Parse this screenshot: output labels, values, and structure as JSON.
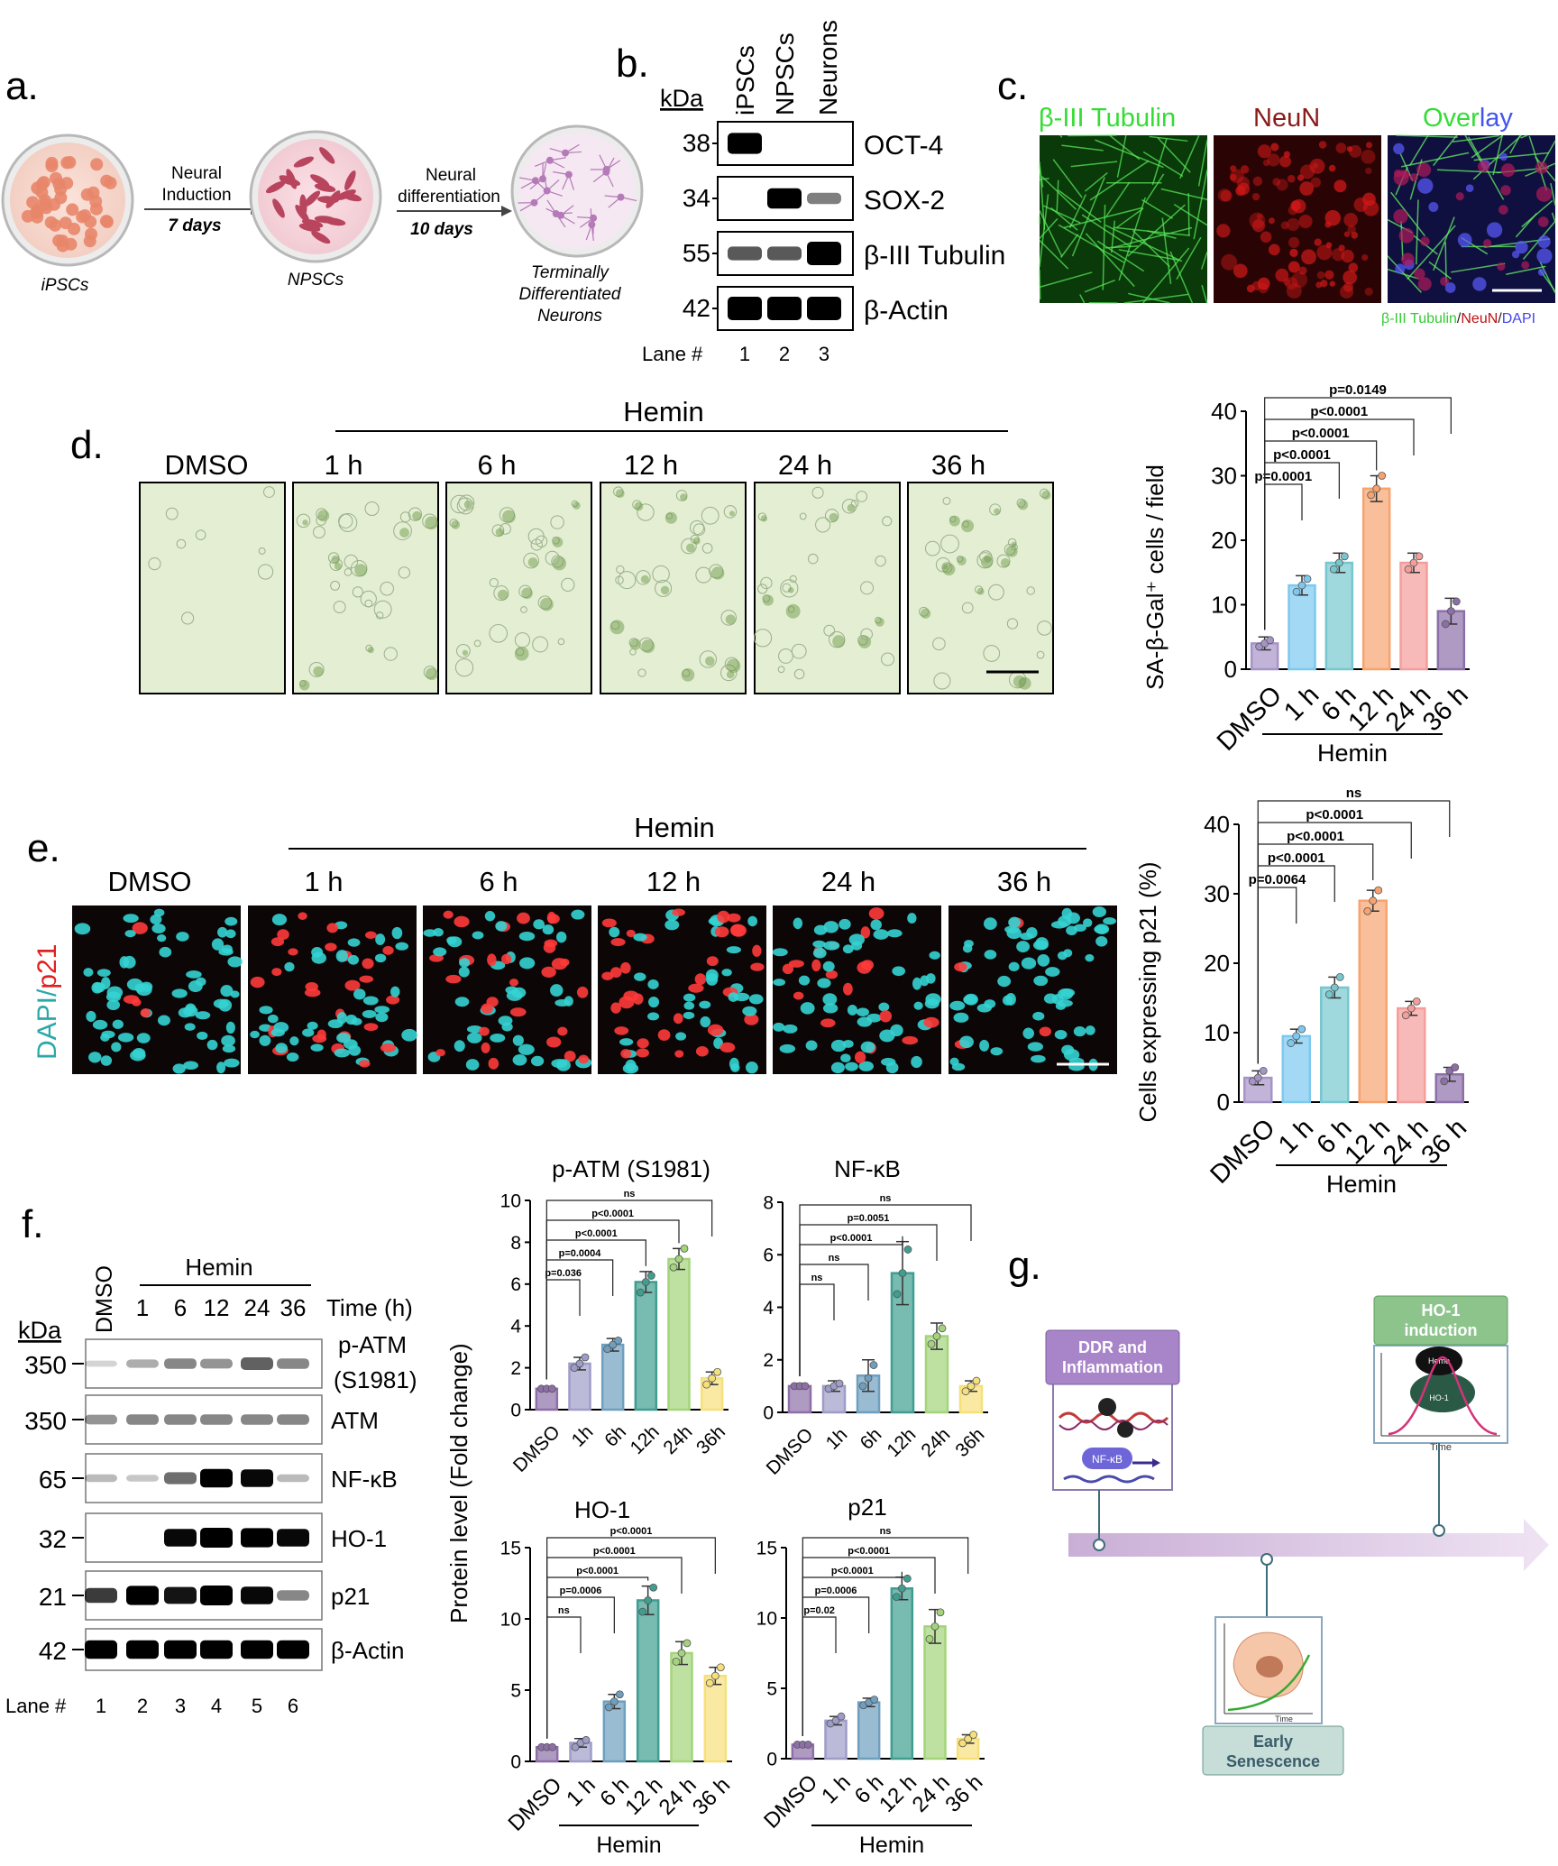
{
  "panel_letters": {
    "a": "a.",
    "b": "b.",
    "c": "c.",
    "d": "d.",
    "e": "e.",
    "f": "f.",
    "g": "g."
  },
  "panel_a": {
    "stages": [
      "iPSCs",
      "NPSCs",
      "Terminally",
      "Differentiated",
      "Neurons"
    ],
    "step1": {
      "line1": "Neural",
      "line2": "Induction",
      "days": "7 days"
    },
    "step2": {
      "line1": "Neural",
      "line2": "differentiation",
      "days": "10 days"
    },
    "colors": {
      "ipsc": "#e8866a",
      "npsc": "#b8445e",
      "neuron": "#b57ab8"
    }
  },
  "panel_b": {
    "kda_label": "kDa",
    "lane_headers": [
      "iPSCs",
      "NPSCs",
      "Neurons"
    ],
    "rows": [
      {
        "kda": "38",
        "label": "OCT-4",
        "bands": [
          0.85,
          0,
          0
        ]
      },
      {
        "kda": "34",
        "label": "SOX-2",
        "bands": [
          0,
          0.8,
          0.25
        ]
      },
      {
        "kda": "55",
        "label": "β-III Tubulin",
        "bands": [
          0.4,
          0.4,
          1
        ]
      },
      {
        "kda": "42",
        "label": "β-Actin",
        "bands": [
          1,
          1,
          1
        ]
      }
    ],
    "lane_label": "Lane #",
    "lanes": [
      "1",
      "2",
      "3"
    ]
  },
  "panel_c": {
    "titles": [
      {
        "text": "β-III Tubulin",
        "color": "#33dd33"
      },
      {
        "text": "NeuN",
        "color": "#8b1a1a"
      },
      {
        "text": "Overlay",
        "color": "#33dd33"
      }
    ],
    "caption": [
      {
        "text": "β-III Tubulin",
        "color": "#33cc33"
      },
      {
        "text": "/",
        "color": "#222222"
      },
      {
        "text": "NeuN",
        "color": "#c01010"
      },
      {
        "text": "/",
        "color": "#222222"
      },
      {
        "text": "DAPI",
        "color": "#4444ee"
      }
    ]
  },
  "panel_d": {
    "treatment": "Hemin",
    "conditions": [
      "DMSO",
      "1 h",
      "6 h",
      "12 h",
      "24 h",
      "36 h"
    ]
  },
  "panel_e": {
    "treatment": "Hemin",
    "conditions": [
      "DMSO",
      "1 h",
      "6 h",
      "12 h",
      "24 h",
      "36 h"
    ],
    "side_label": {
      "dapi": "DAPI",
      "sep": "/",
      "p21": "p21"
    }
  },
  "panel_f": {
    "lane_header": "DMSO",
    "treatment": "Hemin",
    "times": [
      "1",
      "6",
      "12",
      "24",
      "36"
    ],
    "time_label": "Time (h)",
    "kda_label": "kDa",
    "rows": [
      {
        "kda": "350",
        "label": "p-ATM",
        "label2": "(S1981)",
        "bands": [
          0.05,
          0.2,
          0.35,
          0.3,
          0.5,
          0.35
        ]
      },
      {
        "kda": "350",
        "label": "ATM",
        "label2": "",
        "bands": [
          0.3,
          0.35,
          0.35,
          0.35,
          0.35,
          0.35
        ]
      },
      {
        "kda": "65",
        "label": "NF-κB",
        "label2": "",
        "bands": [
          0.15,
          0.1,
          0.45,
          0.9,
          0.85,
          0.15
        ]
      },
      {
        "kda": "32",
        "label": "HO-1",
        "label2": "",
        "bands": [
          0,
          0,
          0.85,
          1,
          0.95,
          0.85
        ]
      },
      {
        "kda": "21",
        "label": "p21",
        "label2": "",
        "bands": [
          0.65,
          0.95,
          0.8,
          1,
          0.85,
          0.35
        ]
      },
      {
        "kda": "42",
        "label": "β-Actin",
        "label2": "",
        "bands": [
          0.9,
          0.9,
          0.9,
          0.9,
          0.9,
          0.9
        ]
      }
    ],
    "lane_label": "Lane #",
    "lanes": [
      "1",
      "2",
      "3",
      "4",
      "5",
      "6"
    ],
    "shared_ylabel": "Protein level (Fold change)"
  },
  "panel_g": {
    "boxes": {
      "ddr": {
        "line1": "DDR and",
        "line2": "Inflammation",
        "nfkb": "NF-κB"
      },
      "ho1": {
        "line1": "HO-1",
        "line2": "induction",
        "heme": "Heme",
        "ho1": "HO-1",
        "time": "Time"
      },
      "early": {
        "line1": "Early",
        "line2": "Senescence",
        "time": "Time"
      }
    },
    "colors": {
      "ddr": "#a884c8",
      "ho1": "#8cc48c",
      "early": "#c6ddd8",
      "arrow": "#dccbe4"
    }
  },
  "chart_data": [
    {
      "id": "d",
      "type": "bar",
      "categories": [
        "DMSO",
        "1 h",
        "6 h",
        "12 h",
        "24 h",
        "36 h"
      ],
      "values": [
        4,
        13,
        16.5,
        28,
        16.5,
        9
      ],
      "errors": [
        1,
        1.5,
        1.5,
        2,
        1.5,
        2
      ],
      "points": [
        [
          3.5,
          4,
          4.5
        ],
        [
          12,
          13,
          14
        ],
        [
          15.5,
          16.5,
          17.5
        ],
        [
          27,
          28,
          30
        ],
        [
          15.5,
          16.5,
          17.5
        ],
        [
          7,
          9,
          10.5
        ]
      ],
      "colors": [
        "#a694c8",
        "#7cc9ef",
        "#76c7cf",
        "#f6a36f",
        "#f59d9b",
        "#8c6fa8"
      ],
      "ylabel": "SA-β-Gal⁺ cells / field",
      "xgroup": "Hemin",
      "ylim": [
        0,
        40
      ],
      "yticks": [
        "0",
        "10",
        "20",
        "30",
        "40"
      ],
      "comparisons": [
        {
          "to": 1,
          "label": "p=0.0001"
        },
        {
          "to": 2,
          "label": "p<0.0001"
        },
        {
          "to": 3,
          "label": "p<0.0001"
        },
        {
          "to": 4,
          "label": "p<0.0001"
        },
        {
          "to": 5,
          "label": "p=0.0149"
        }
      ]
    },
    {
      "id": "e",
      "type": "bar",
      "categories": [
        "DMSO",
        "1 h",
        "6 h",
        "12 h",
        "24 h",
        "36 h"
      ],
      "values": [
        3.5,
        9.5,
        16.5,
        29,
        13.5,
        4
      ],
      "errors": [
        1,
        1,
        1.5,
        1.5,
        1,
        1
      ],
      "points": [
        [
          3,
          3.5,
          4.5
        ],
        [
          8.5,
          9.5,
          10.5
        ],
        [
          15.5,
          16.5,
          18
        ],
        [
          27.5,
          29,
          30.5
        ],
        [
          12.5,
          13.5,
          14.5
        ],
        [
          3,
          4.5,
          5
        ]
      ],
      "colors": [
        "#a694c8",
        "#7cc9ef",
        "#76c7cf",
        "#f6a36f",
        "#f59d9b",
        "#8c6fa8"
      ],
      "ylabel": "Cells expressing  p21 (%)",
      "xgroup": "Hemin",
      "ylim": [
        0,
        40
      ],
      "yticks": [
        "0",
        "10",
        "20",
        "30",
        "40"
      ],
      "comparisons": [
        {
          "to": 1,
          "label": "p=0.0064"
        },
        {
          "to": 2,
          "label": "p<0.0001"
        },
        {
          "to": 3,
          "label": "p<0.0001"
        },
        {
          "to": 4,
          "label": "p<0.0001"
        },
        {
          "to": 5,
          "label": "ns"
        }
      ]
    },
    {
      "id": "f1",
      "type": "bar",
      "title": "p-ATM (S1981)",
      "categories": [
        "DMSO",
        "1h",
        "6h",
        "12h",
        "24h",
        "36h"
      ],
      "values": [
        1,
        2.2,
        3.1,
        6.1,
        7.2,
        1.5
      ],
      "errors": [
        0.1,
        0.3,
        0.3,
        0.5,
        0.5,
        0.3
      ],
      "points": [
        [
          1,
          1,
          1
        ],
        [
          2,
          2.2,
          2.5
        ],
        [
          2.9,
          3.1,
          3.3
        ],
        [
          5.6,
          6.1,
          6.4
        ],
        [
          6.8,
          7.2,
          7.7
        ],
        [
          1.2,
          1.5,
          1.8
        ]
      ],
      "colors": [
        "#8d6fa8",
        "#9e9cc8",
        "#6f9fbf",
        "#3f9e8f",
        "#a3d47a",
        "#f6e07a"
      ],
      "ylim": [
        0,
        10
      ],
      "yticks": [
        "0",
        "2",
        "4",
        "6",
        "8",
        "10"
      ],
      "comparisons": [
        {
          "to": 1,
          "label": "p=0.036"
        },
        {
          "to": 2,
          "label": "p=0.0004"
        },
        {
          "to": 3,
          "label": "p<0.0001"
        },
        {
          "to": 4,
          "label": "p<0.0001"
        },
        {
          "to": 5,
          "label": "ns"
        }
      ]
    },
    {
      "id": "f2",
      "type": "bar",
      "title": "NF-κB",
      "categories": [
        "DMSO",
        "1h",
        "6h",
        "12h",
        "24h",
        "36h"
      ],
      "values": [
        1,
        1,
        1.4,
        5.3,
        2.9,
        1
      ],
      "errors": [
        0.1,
        0.2,
        0.6,
        1.2,
        0.5,
        0.2
      ],
      "points": [
        [
          1,
          1,
          1
        ],
        [
          0.9,
          1,
          1.1
        ],
        [
          1,
          1.3,
          1.8
        ],
        [
          4.5,
          5.3,
          6.2
        ],
        [
          2.6,
          2.9,
          3.2
        ],
        [
          0.8,
          1,
          1.2
        ]
      ],
      "colors": [
        "#8d6fa8",
        "#9e9cc8",
        "#6f9fbf",
        "#3f9e8f",
        "#a3d47a",
        "#f6e07a"
      ],
      "ylim": [
        0,
        8
      ],
      "yticks": [
        "0",
        "2",
        "4",
        "6",
        "8"
      ],
      "comparisons": [
        {
          "to": 1,
          "label": "ns"
        },
        {
          "to": 2,
          "label": "ns"
        },
        {
          "to": 3,
          "label": "p<0.0001"
        },
        {
          "to": 4,
          "label": "p=0.0051"
        },
        {
          "to": 5,
          "label": "ns"
        }
      ]
    },
    {
      "id": "f3",
      "type": "bar",
      "title": "HO-1",
      "categories": [
        "DMSO",
        "1 h",
        "6 h",
        "12 h",
        "24 h",
        "36 h"
      ],
      "values": [
        1,
        1.3,
        4.2,
        11.3,
        7.6,
        6
      ],
      "errors": [
        0.1,
        0.3,
        0.5,
        1,
        0.8,
        0.6
      ],
      "points": [
        [
          1,
          1,
          1
        ],
        [
          1,
          1.3,
          1.5
        ],
        [
          3.8,
          4.2,
          4.7
        ],
        [
          10.5,
          11.3,
          12.2
        ],
        [
          7,
          7.6,
          8.3
        ],
        [
          5.5,
          6,
          6.6
        ]
      ],
      "colors": [
        "#8d6fa8",
        "#9e9cc8",
        "#6f9fbf",
        "#3f9e8f",
        "#a3d47a",
        "#f6e07a"
      ],
      "ylim": [
        0,
        15
      ],
      "yticks": [
        "0",
        "5",
        "10",
        "15"
      ],
      "xgroup": "Hemin",
      "comparisons": [
        {
          "to": 1,
          "label": "ns"
        },
        {
          "to": 2,
          "label": "p=0.0006"
        },
        {
          "to": 3,
          "label": "p<0.0001"
        },
        {
          "to": 4,
          "label": "p<0.0001"
        },
        {
          "to": 5,
          "label": "p<0.0001"
        }
      ]
    },
    {
      "id": "f4",
      "type": "bar",
      "title": "p21",
      "categories": [
        "DMSO",
        "1 h",
        "6 h",
        "12 h",
        "24 h",
        "36 h"
      ],
      "values": [
        1,
        2.7,
        4,
        12.1,
        9.4,
        1.4
      ],
      "errors": [
        0.1,
        0.3,
        0.3,
        0.8,
        1.2,
        0.3
      ],
      "points": [
        [
          1,
          1,
          1
        ],
        [
          2.5,
          2.7,
          3
        ],
        [
          3.8,
          4,
          4.2
        ],
        [
          11.5,
          12.1,
          12.8
        ],
        [
          8.5,
          9.4,
          10.4
        ],
        [
          1.1,
          1.4,
          1.7
        ]
      ],
      "colors": [
        "#8d6fa8",
        "#9e9cc8",
        "#6f9fbf",
        "#3f9e8f",
        "#a3d47a",
        "#f6e07a"
      ],
      "ylim": [
        0,
        15
      ],
      "yticks": [
        "0",
        "5",
        "10",
        "15"
      ],
      "xgroup": "Hemin",
      "comparisons": [
        {
          "to": 1,
          "label": "p=0.02"
        },
        {
          "to": 2,
          "label": "p=0.0006"
        },
        {
          "to": 3,
          "label": "p<0.0001"
        },
        {
          "to": 4,
          "label": "p<0.0001"
        },
        {
          "to": 5,
          "label": "ns"
        }
      ]
    }
  ]
}
